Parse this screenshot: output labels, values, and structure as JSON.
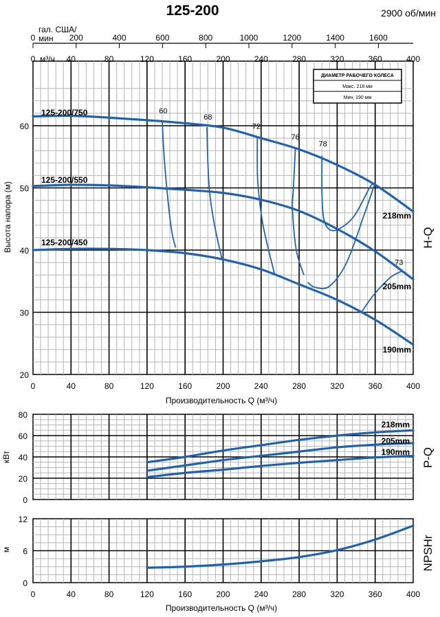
{
  "header": {
    "title": "125-200",
    "speed": "2900 об/мин"
  },
  "impeller_box": {
    "title": "ДИАМЕТР РАБОЧЕГО КОЛЕСА",
    "max": "Макс. 218 мм",
    "min": "Мин, 190 мм"
  },
  "colors": {
    "curve": "#1f63b0",
    "grid": "#000000",
    "minor_grid": "#b5b5b5"
  },
  "chart_data": [
    {
      "type": "line",
      "name": "H-Q",
      "side_label": "H-Q",
      "ylabel": "Высота напора (м)",
      "xlabel": "Производительность Q (м³/ч)",
      "x_unit_label": "м³/ч",
      "us_unit_label_1": "гал. США/",
      "us_unit_label_2": "мин",
      "xlim": [
        0,
        400
      ],
      "ylim": [
        20,
        66
      ],
      "x_ticks": [
        0,
        40,
        80,
        120,
        160,
        200,
        240,
        280,
        320,
        360,
        400
      ],
      "y_ticks": [
        20,
        30,
        40,
        50,
        60
      ],
      "us_ticks": [
        {
          "label": "0",
          "q": 0
        },
        {
          "label": "200",
          "q": 45.4
        },
        {
          "label": "400",
          "q": 90.8
        },
        {
          "label": "600",
          "q": 136.3
        },
        {
          "label": "800",
          "q": 181.7
        },
        {
          "label": "1000",
          "q": 227.1
        },
        {
          "label": "1200",
          "q": 272.5
        },
        {
          "label": "1400",
          "q": 318
        },
        {
          "label": "1600",
          "q": 363.4
        }
      ],
      "series": [
        {
          "name": "218mm",
          "model": "125-200/750",
          "points": [
            [
              0,
              61.5
            ],
            [
              40,
              61.6
            ],
            [
              80,
              61.3
            ],
            [
              120,
              60.9
            ],
            [
              160,
              60.4
            ],
            [
              200,
              59.7
            ],
            [
              240,
              58.0
            ],
            [
              280,
              56.2
            ],
            [
              320,
              53.7
            ],
            [
              360,
              50.5
            ],
            [
              400,
              46.2
            ]
          ]
        },
        {
          "name": "205mm",
          "model": "125-200/550",
          "points": [
            [
              0,
              50.3
            ],
            [
              40,
              50.5
            ],
            [
              80,
              50.4
            ],
            [
              120,
              50.1
            ],
            [
              160,
              49.7
            ],
            [
              200,
              49.2
            ],
            [
              240,
              48.1
            ],
            [
              280,
              46.3
            ],
            [
              320,
              43.4
            ],
            [
              360,
              39.8
            ],
            [
              400,
              35.3
            ]
          ]
        },
        {
          "name": "190mm",
          "model": "125-200/450",
          "points": [
            [
              0,
              40.0
            ],
            [
              40,
              40.2
            ],
            [
              80,
              40.2
            ],
            [
              120,
              40.0
            ],
            [
              160,
              39.5
            ],
            [
              200,
              38.5
            ],
            [
              240,
              36.9
            ],
            [
              280,
              34.5
            ],
            [
              320,
              32.0
            ],
            [
              360,
              28.8
            ],
            [
              400,
              24.8
            ]
          ]
        }
      ],
      "efficiency": [
        {
          "label": "60",
          "points": [
            [
              136,
              60.6
            ],
            [
              138,
              55
            ],
            [
              142,
              48
            ],
            [
              146,
              43
            ],
            [
              150,
              40.4
            ]
          ]
        },
        {
          "label": "68",
          "points": [
            [
              183,
              59.8
            ],
            [
              184,
              54
            ],
            [
              186,
              49
            ],
            [
              191,
              44
            ],
            [
              199,
              38.4
            ]
          ]
        },
        {
          "label": "72",
          "points": [
            [
              236,
              58.3
            ],
            [
              236,
              53
            ],
            [
              237,
              50
            ],
            [
              242,
              44
            ],
            [
              254,
              36.2
            ]
          ]
        },
        {
          "label": "76",
          "points": [
            [
              276,
              56.3
            ],
            [
              274,
              50
            ],
            [
              273,
              46.5
            ],
            [
              277,
              40
            ],
            [
              285,
              36
            ]
          ]
        },
        {
          "label": "78",
          "points": [
            [
              304,
              55.2
            ],
            [
              304,
              49
            ],
            [
              306,
              45
            ],
            [
              312,
              43.3
            ],
            [
              322,
              43.4
            ],
            [
              338,
              45.5
            ],
            [
              354,
              50.0
            ],
            [
              358,
              50.7
            ]
          ]
        },
        {
          "label": "73",
          "points": [
            [
              289,
              34.8
            ],
            [
              297,
              34.0
            ],
            [
              312,
              34.2
            ],
            [
              330,
              38.0
            ],
            [
              348,
              45.5
            ],
            [
              359,
              50.4
            ]
          ]
        },
        {
          "label": "73",
          "points": [
            [
              346,
              30.1
            ],
            [
              358,
              32.7
            ],
            [
              376,
              35.6
            ],
            [
              388,
              36.6
            ]
          ]
        }
      ],
      "eff_label_q": [
        {
          "label": "60",
          "q": 137,
          "h": 62
        },
        {
          "label": "68",
          "q": 184,
          "h": 61
        },
        {
          "label": "72",
          "q": 235,
          "h": 59.5
        },
        {
          "label": "76",
          "q": 276,
          "h": 57.8
        },
        {
          "label": "78",
          "q": 305,
          "h": 56.7
        },
        {
          "label": "73",
          "q": 385,
          "h": 37.6
        }
      ]
    },
    {
      "type": "line",
      "name": "P-Q",
      "side_label": "P-Q",
      "ylabel": "кВт",
      "xlim": [
        0,
        400
      ],
      "ylim": [
        0,
        80
      ],
      "y_ticks": [
        0,
        20,
        40,
        60,
        80
      ],
      "series": [
        {
          "name": "218mm",
          "points": [
            [
              120,
              35
            ],
            [
              160,
              40
            ],
            [
              200,
              46
            ],
            [
              240,
              51
            ],
            [
              280,
              56
            ],
            [
              320,
              60
            ],
            [
              360,
              63
            ],
            [
              400,
              65
            ]
          ]
        },
        {
          "name": "205mm",
          "points": [
            [
              120,
              27
            ],
            [
              160,
              32
            ],
            [
              200,
              37
            ],
            [
              240,
              41
            ],
            [
              280,
              45
            ],
            [
              320,
              49
            ],
            [
              360,
              51.5
            ],
            [
              400,
              53
            ]
          ]
        },
        {
          "name": "190mm",
          "points": [
            [
              120,
              21
            ],
            [
              160,
              25
            ],
            [
              200,
              28
            ],
            [
              240,
              31.5
            ],
            [
              280,
              34.5
            ],
            [
              320,
              37
            ],
            [
              360,
              39.5
            ],
            [
              400,
              41
            ]
          ]
        }
      ]
    },
    {
      "type": "line",
      "name": "NPSHr",
      "side_label": "NPSHr",
      "ylabel": "м",
      "xlabel": "Производительность Q (м³/ч)",
      "xlim": [
        0,
        400
      ],
      "ylim": [
        0,
        12
      ],
      "x_ticks": [
        0,
        40,
        80,
        120,
        160,
        200,
        240,
        280,
        320,
        360,
        400
      ],
      "y_ticks": [
        0,
        6,
        12
      ],
      "series": [
        {
          "name": "NPSHr",
          "points": [
            [
              120,
              2.8
            ],
            [
              160,
              3.0
            ],
            [
              200,
              3.4
            ],
            [
              240,
              4.0
            ],
            [
              280,
              4.8
            ],
            [
              320,
              6.1
            ],
            [
              360,
              8.1
            ],
            [
              400,
              10.7
            ]
          ]
        }
      ]
    }
  ]
}
